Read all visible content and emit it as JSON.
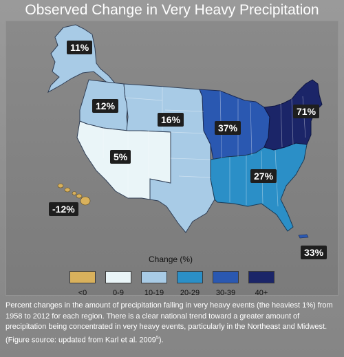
{
  "title": "Observed Change in Very Heavy Precipitation",
  "regions": [
    {
      "id": "alaska",
      "label": "11%",
      "category": "10-19",
      "value_pct": 11
    },
    {
      "id": "northwest",
      "label": "12%",
      "category": "10-19",
      "value_pct": 12
    },
    {
      "id": "great-plains",
      "label": "16%",
      "category": "10-19",
      "value_pct": 16
    },
    {
      "id": "southwest",
      "label": "5%",
      "category": "0-9",
      "value_pct": 5
    },
    {
      "id": "hawaii",
      "label": "-12%",
      "category": "<0",
      "value_pct": -12
    },
    {
      "id": "midwest",
      "label": "37%",
      "category": "30-39",
      "value_pct": 37
    },
    {
      "id": "southeast",
      "label": "27%",
      "category": "20-29",
      "value_pct": 27
    },
    {
      "id": "northeast",
      "label": "71%",
      "category": "40+",
      "value_pct": 71
    },
    {
      "id": "puerto-rico",
      "label": "33%",
      "category": "30-39",
      "value_pct": 33
    }
  ],
  "legend": {
    "title": "Change (%)",
    "items": [
      {
        "label": "<0",
        "color": "#d9b15c"
      },
      {
        "label": "0-9",
        "color": "#eaf5f8"
      },
      {
        "label": "10-19",
        "color": "#a8cbe6"
      },
      {
        "label": "20-29",
        "color": "#2b8fc7"
      },
      {
        "label": "30-39",
        "color": "#2a58b1"
      },
      {
        "label": "40+",
        "color": "#1b2568"
      }
    ]
  },
  "caption": {
    "text": "Percent changes in the amount of precipitation falling in very heavy events (the heaviest 1%) from 1958 to 2012 for each region. There is a clear national trend toward a greater amount of precipitation being concentrated in very heavy events, particularly in the Northeast and Midwest. (Figure source: updated from Karl et al. 2009",
    "superscript": "5",
    "end": ")."
  }
}
